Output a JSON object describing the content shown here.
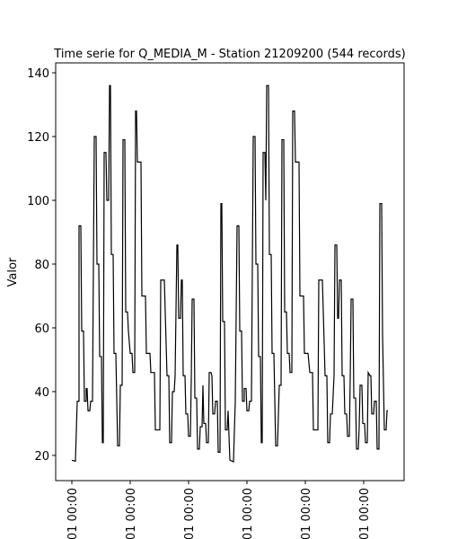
{
  "chart_data": {
    "type": "line",
    "title": "Time serie for Q_MEDIA_M - Station 21209200 (544 records)",
    "ylabel": "Valor",
    "color": "#000000",
    "xlim": [
      -18,
      370
    ],
    "xticks": [
      {
        "value": 0,
        "label": "01 00:00"
      },
      {
        "value": 65,
        "label": "01 00:00"
      },
      {
        "value": 130,
        "label": "01 00:00"
      },
      {
        "value": 195,
        "label": "01 00:00"
      },
      {
        "value": 260,
        "label": "01 00:00"
      },
      {
        "value": 325,
        "label": "01 00:00"
      }
    ],
    "ylim": [
      12.1,
      143.1
    ],
    "yticks": [
      20,
      40,
      60,
      80,
      100,
      120,
      140
    ],
    "x": [
      0,
      4,
      6,
      8,
      8,
      10,
      11,
      13,
      14,
      16,
      16,
      17,
      18,
      20,
      21,
      23,
      25,
      27,
      28,
      30,
      31,
      33,
      34,
      35,
      36,
      38,
      39,
      41,
      42,
      43,
      44,
      46,
      47,
      49,
      51,
      53,
      54,
      56,
      57,
      59,
      60,
      62,
      63,
      65,
      67,
      68,
      70,
      71,
      72,
      73,
      77,
      78,
      82,
      83,
      87,
      88,
      92,
      93,
      98,
      99,
      103,
      104,
      106,
      108,
      109,
      111,
      112,
      114,
      115,
      117,
      118,
      119,
      121,
      122,
      123,
      124,
      126,
      127,
      129,
      130,
      132,
      133,
      134,
      136,
      137,
      139,
      140,
      142,
      143,
      145,
      146,
      147,
      149,
      150,
      152,
      153,
      155,
      156,
      157,
      159,
      160,
      162,
      163,
      165,
      166,
      167,
      168,
      170,
      171,
      173,
      174,
      176,
      180,
      182,
      184,
      186,
      187,
      189,
      190,
      192,
      192,
      194,
      195,
      197,
      198,
      200,
      202,
      204,
      205,
      207,
      208,
      210,
      211,
      212,
      213,
      215,
      216,
      217,
      219,
      220,
      222,
      223,
      225,
      227,
      229,
      231,
      233,
      234,
      236,
      237,
      239,
      240,
      242,
      243,
      245,
      246,
      248,
      249,
      253,
      254,
      258,
      259,
      263,
      265,
      268,
      269,
      274,
      275,
      279,
      280,
      282,
      284,
      285,
      287,
      288,
      290,
      292,
      293,
      295,
      296,
      297,
      298,
      300,
      301,
      303,
      304,
      306,
      307,
      309,
      310,
      311,
      313,
      314,
      316,
      317,
      319,
      320,
      321,
      323,
      324,
      326,
      327,
      329,
      330,
      332,
      333,
      334,
      336,
      337,
      339,
      340,
      342,
      343,
      345,
      346,
      348,
      350,
      351,
      352
    ],
    "values": [
      18.5,
      18.2,
      37,
      37,
      92,
      92,
      59,
      59,
      37,
      37,
      41,
      41,
      34,
      34,
      37,
      37,
      120,
      120,
      80,
      80,
      51,
      51,
      24,
      24,
      115,
      115,
      100,
      100,
      136,
      136,
      83,
      83,
      52,
      52,
      23,
      23,
      42,
      42,
      119,
      119,
      65,
      65,
      59,
      52,
      52,
      46,
      46,
      128,
      128,
      112,
      112,
      70,
      70,
      52,
      52,
      46,
      46,
      28,
      28,
      75,
      75,
      65,
      45,
      45,
      24,
      24,
      40,
      40,
      45,
      86,
      86,
      63,
      63,
      75,
      75,
      45,
      45,
      33,
      33,
      26,
      26,
      44,
      69,
      69,
      38,
      38,
      22,
      22,
      29,
      29,
      42,
      30,
      30,
      24,
      24,
      46,
      46,
      45,
      33,
      33,
      37,
      37,
      21,
      21,
      99,
      99,
      62,
      62,
      28,
      28,
      34,
      18.5,
      18,
      37,
      92,
      92,
      59,
      59,
      37,
      37,
      41,
      41,
      34,
      34,
      37,
      37,
      120,
      120,
      80,
      80,
      51,
      51,
      24,
      24,
      115,
      115,
      100,
      136,
      136,
      83,
      83,
      52,
      52,
      23,
      23,
      42,
      42,
      119,
      119,
      65,
      65,
      52,
      52,
      46,
      46,
      128,
      128,
      112,
      112,
      70,
      70,
      52,
      52,
      46,
      46,
      28,
      28,
      75,
      75,
      65,
      45,
      45,
      24,
      24,
      33,
      33,
      45,
      86,
      86,
      63,
      63,
      75,
      75,
      45,
      45,
      33,
      33,
      26,
      26,
      44,
      69,
      69,
      38,
      38,
      22,
      22,
      29,
      42,
      42,
      30,
      30,
      24,
      24,
      46,
      45,
      45,
      33,
      33,
      37,
      37,
      22,
      22,
      99,
      99,
      58,
      28,
      28,
      34,
      34
    ]
  }
}
